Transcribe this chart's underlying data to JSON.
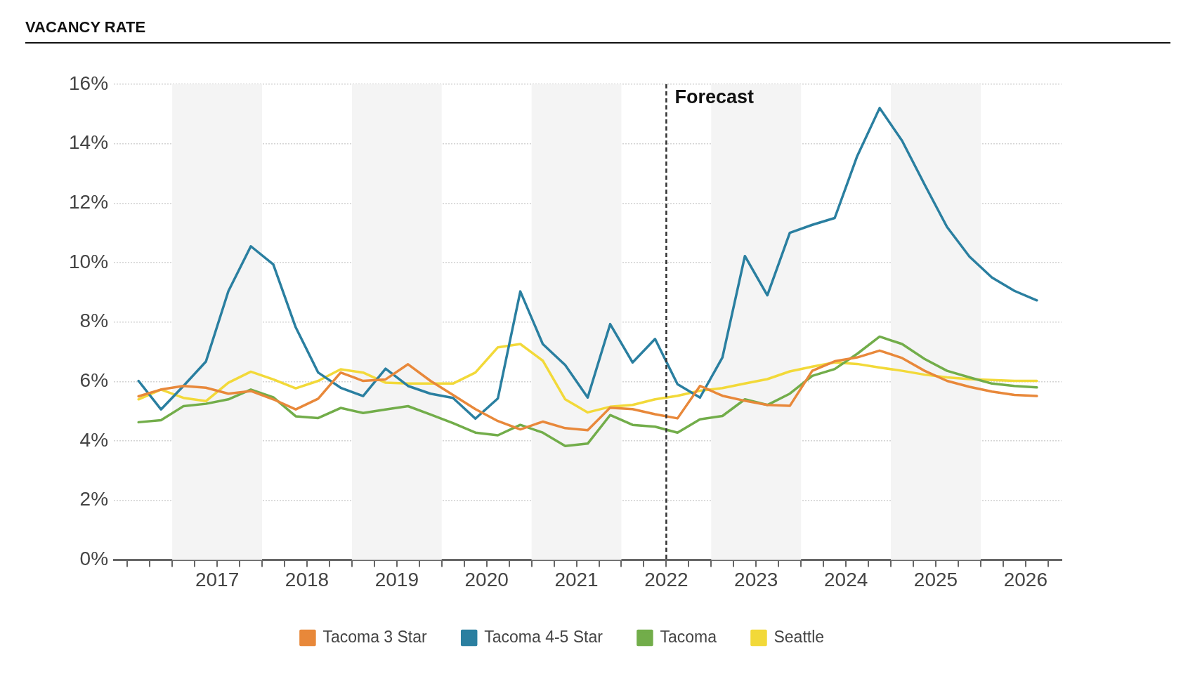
{
  "chart_data": {
    "type": "line",
    "title": "VACANCY RATE",
    "x": [
      2016.625,
      2016.875,
      2017.125,
      2017.375,
      2017.625,
      2017.875,
      2018.125,
      2018.375,
      2018.625,
      2018.875,
      2019.125,
      2019.375,
      2019.625,
      2019.875,
      2020.125,
      2020.375,
      2020.625,
      2020.875,
      2021.125,
      2021.375,
      2021.625,
      2021.875,
      2022.125,
      2022.375,
      2022.625,
      2022.875,
      2023.125,
      2023.375,
      2023.625,
      2023.875,
      2024.125,
      2024.375,
      2024.625,
      2024.875,
      2025.125,
      2025.375,
      2025.625,
      2025.875,
      2026.125,
      2026.375,
      2026.625
    ],
    "series": [
      {
        "name": "Tacoma 3 Star",
        "color": "#e8883a",
        "values": [
          5.5,
          5.73,
          5.85,
          5.79,
          5.59,
          5.68,
          5.4,
          5.06,
          5.42,
          6.3,
          6.02,
          6.07,
          6.58,
          6.02,
          5.55,
          5.07,
          4.67,
          4.39,
          4.65,
          4.43,
          4.36,
          5.12,
          5.07,
          4.9,
          4.76,
          5.85,
          5.52,
          5.35,
          5.21,
          5.18,
          6.36,
          6.68,
          6.81,
          7.04,
          6.79,
          6.36,
          6.02,
          5.82,
          5.66,
          5.55,
          5.51
        ]
      },
      {
        "name": "Tacoma 4-5 Star",
        "color": "#2a7fa0",
        "values": [
          6.02,
          5.06,
          5.85,
          6.67,
          9.04,
          10.55,
          9.94,
          7.82,
          6.3,
          5.79,
          5.51,
          6.43,
          5.85,
          5.59,
          5.45,
          4.75,
          5.43,
          9.03,
          7.26,
          6.55,
          5.46,
          7.93,
          6.64,
          7.43,
          5.91,
          5.46,
          6.81,
          10.22,
          8.9,
          11.0,
          11.27,
          11.5,
          13.58,
          15.2,
          14.1,
          12.63,
          11.2,
          10.2,
          9.5,
          9.05,
          8.73
        ]
      },
      {
        "name": "Tacoma",
        "color": "#72ad4a",
        "values": [
          4.63,
          4.7,
          5.17,
          5.25,
          5.4,
          5.73,
          5.47,
          4.83,
          4.77,
          5.11,
          4.94,
          5.06,
          5.17,
          4.89,
          4.6,
          4.28,
          4.19,
          4.54,
          4.28,
          3.83,
          3.91,
          4.87,
          4.54,
          4.48,
          4.28,
          4.73,
          4.84,
          5.4,
          5.21,
          5.59,
          6.19,
          6.42,
          6.93,
          7.51,
          7.26,
          6.76,
          6.36,
          6.14,
          5.93,
          5.85,
          5.8
        ]
      },
      {
        "name": "Seattle",
        "color": "#f2d939",
        "values": [
          5.4,
          5.73,
          5.45,
          5.34,
          5.96,
          6.33,
          6.07,
          5.77,
          6.02,
          6.41,
          6.3,
          5.96,
          5.93,
          5.93,
          5.93,
          6.3,
          7.15,
          7.26,
          6.7,
          5.4,
          4.96,
          5.15,
          5.21,
          5.4,
          5.52,
          5.69,
          5.78,
          5.93,
          6.08,
          6.34,
          6.5,
          6.64,
          6.59,
          6.47,
          6.36,
          6.23,
          6.14,
          6.08,
          6.05,
          6.02,
          6.02
        ]
      }
    ],
    "xlim": [
      2016.35,
      2026.9
    ],
    "xticks": [
      {
        "value": 2016.5,
        "label": null
      },
      {
        "value": 2016.75,
        "label": null
      },
      {
        "value": 2017,
        "label": null
      },
      {
        "value": 2017.25,
        "label": null
      },
      {
        "value": 2017.5,
        "label": "2017"
      },
      {
        "value": 2017.75,
        "label": null
      },
      {
        "value": 2018,
        "label": null
      },
      {
        "value": 2018.25,
        "label": null
      },
      {
        "value": 2018.5,
        "label": "2018"
      },
      {
        "value": 2018.75,
        "label": null
      },
      {
        "value": 2019,
        "label": null
      },
      {
        "value": 2019.25,
        "label": null
      },
      {
        "value": 2019.5,
        "label": "2019"
      },
      {
        "value": 2019.75,
        "label": null
      },
      {
        "value": 2020,
        "label": null
      },
      {
        "value": 2020.25,
        "label": null
      },
      {
        "value": 2020.5,
        "label": "2020"
      },
      {
        "value": 2020.75,
        "label": null
      },
      {
        "value": 2021,
        "label": null
      },
      {
        "value": 2021.25,
        "label": null
      },
      {
        "value": 2021.5,
        "label": "2021"
      },
      {
        "value": 2021.75,
        "label": null
      },
      {
        "value": 2022,
        "label": null
      },
      {
        "value": 2022.25,
        "label": null
      },
      {
        "value": 2022.5,
        "label": "2022"
      },
      {
        "value": 2022.75,
        "label": null
      },
      {
        "value": 2023,
        "label": null
      },
      {
        "value": 2023.25,
        "label": null
      },
      {
        "value": 2023.5,
        "label": "2023"
      },
      {
        "value": 2023.75,
        "label": null
      },
      {
        "value": 2024,
        "label": null
      },
      {
        "value": 2024.25,
        "label": null
      },
      {
        "value": 2024.5,
        "label": "2024"
      },
      {
        "value": 2024.75,
        "label": null
      },
      {
        "value": 2025,
        "label": null
      },
      {
        "value": 2025.25,
        "label": null
      },
      {
        "value": 2025.5,
        "label": "2025"
      },
      {
        "value": 2025.75,
        "label": null
      },
      {
        "value": 2026,
        "label": null
      },
      {
        "value": 2026.25,
        "label": null
      },
      {
        "value": 2026.5,
        "label": "2026"
      },
      {
        "value": 2026.75,
        "label": null
      }
    ],
    "ylim": [
      0,
      16
    ],
    "yticks": [
      {
        "value": 0,
        "label": "0%"
      },
      {
        "value": 2,
        "label": "2%"
      },
      {
        "value": 4,
        "label": "4%"
      },
      {
        "value": 6,
        "label": "6%"
      },
      {
        "value": 8,
        "label": "8%"
      },
      {
        "value": 10,
        "label": "10%"
      },
      {
        "value": 12,
        "label": "12%"
      },
      {
        "value": 14,
        "label": "14%"
      },
      {
        "value": 16,
        "label": "16%"
      }
    ],
    "grid": "y",
    "legend": "bottom",
    "line_style": "solid",
    "ref_lines": [
      {
        "axis": "x",
        "value": 2022.5,
        "label": "Forecast",
        "color": "#333333",
        "line_style": "dashed"
      }
    ],
    "bands": [
      {
        "axis": "x",
        "from": 2017,
        "to": 2018,
        "color": "#f4f4f4"
      },
      {
        "axis": "x",
        "from": 2019,
        "to": 2020,
        "color": "#f4f4f4"
      },
      {
        "axis": "x",
        "from": 2021,
        "to": 2022,
        "color": "#f4f4f4"
      },
      {
        "axis": "x",
        "from": 2023,
        "to": 2024,
        "color": "#f4f4f4"
      },
      {
        "axis": "x",
        "from": 2025,
        "to": 2026,
        "color": "#f4f4f4"
      }
    ]
  }
}
